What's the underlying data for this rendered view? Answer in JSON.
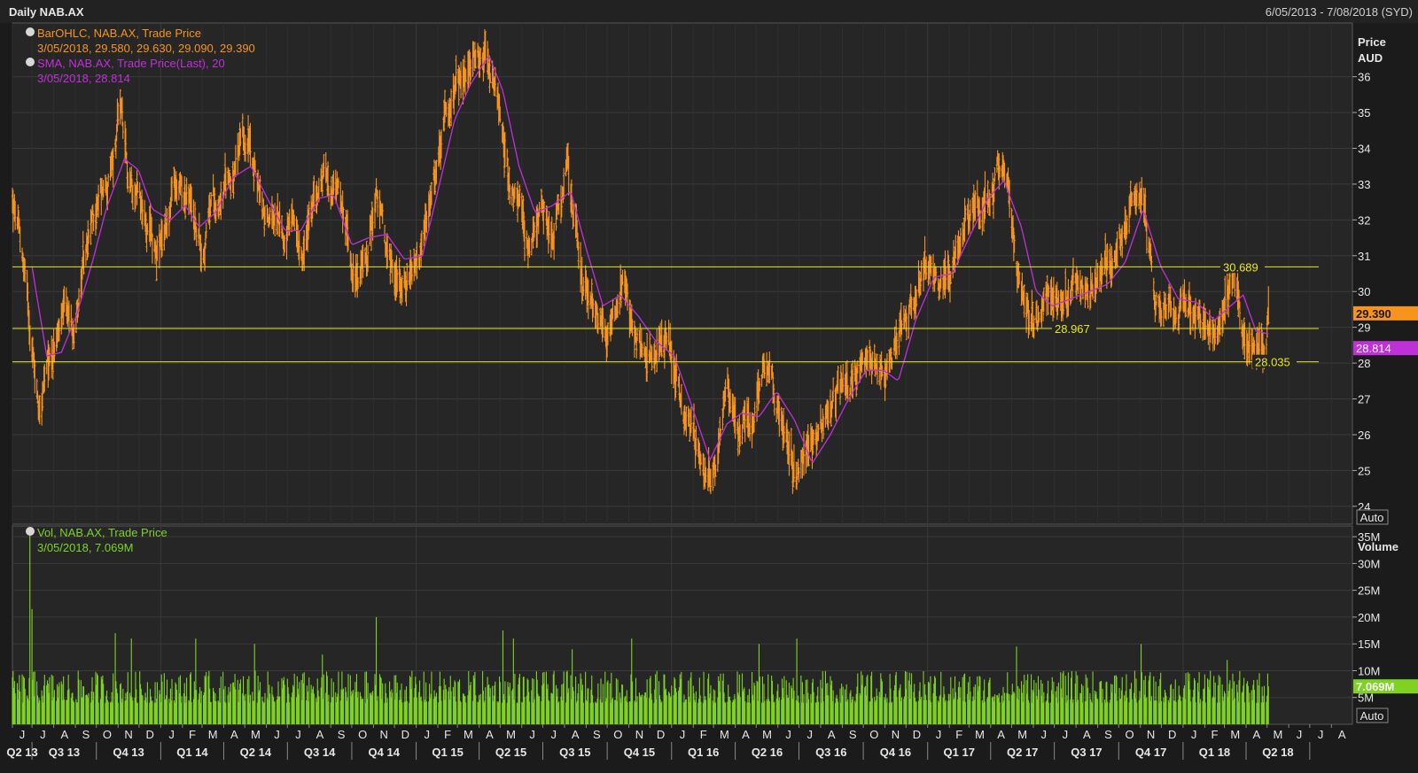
{
  "window": {
    "title": "Daily NAB.AX",
    "date_range": "6/05/2013 - 7/08/2018 (SYD)"
  },
  "price_panel": {
    "axis_title": "Price",
    "axis_unit": "AUD",
    "auto_label": "Auto",
    "legend": [
      {
        "name": "BarOHLC, NAB.AX, Trade Price",
        "detail": "3/05/2018, 29.580, 29.630, 29.090, 29.390",
        "color": "#f7941d"
      },
      {
        "name": "SMA, NAB.AX, Trade Price(Last),  20",
        "detail": "3/05/2018, 28.814",
        "color": "#c030d8"
      }
    ],
    "last_price_label": "29.390",
    "sma_label": "28.814"
  },
  "volume_panel": {
    "axis_title": "Volume",
    "auto_label": "Auto",
    "legend": {
      "name": "Vol, NAB.AX, Trade Price",
      "detail": "3/05/2018, 7.069M",
      "color": "#7ed321"
    },
    "last_volume_label": "7.069M"
  },
  "chart_data": [
    {
      "type": "ohlc",
      "title": "Daily NAB.AX",
      "ylabel": "Price AUD",
      "ylim": [
        23.5,
        37.5
      ],
      "y_ticks": [
        24,
        25,
        26,
        27,
        28,
        29,
        30,
        31,
        32,
        33,
        34,
        35,
        36
      ],
      "x_start": "2013-06-03",
      "x_end": "2018-08-31",
      "month_labels": [
        "J",
        "J",
        "A",
        "S",
        "O",
        "N",
        "D",
        "J",
        "F",
        "M",
        "A",
        "M",
        "J",
        "J",
        "A",
        "S",
        "O",
        "N",
        "D",
        "J",
        "F",
        "M",
        "A",
        "M",
        "J",
        "J",
        "A",
        "S",
        "O",
        "N",
        "D",
        "J",
        "F",
        "M",
        "A",
        "M",
        "J",
        "J",
        "A",
        "S",
        "O",
        "N",
        "D",
        "J",
        "F",
        "M",
        "A",
        "M",
        "J",
        "J",
        "A",
        "S",
        "O",
        "N",
        "D",
        "J",
        "F",
        "M",
        "A",
        "M",
        "J",
        "J",
        "A"
      ],
      "quarter_labels": [
        "Q2 13",
        "Q3 13",
        "Q4 13",
        "Q1 14",
        "Q2 14",
        "Q3 14",
        "Q4 14",
        "Q1 15",
        "Q2 15",
        "Q3 15",
        "Q4 15",
        "Q1 16",
        "Q2 16",
        "Q3 16",
        "Q4 16",
        "Q1 17",
        "Q2 17",
        "Q3 17",
        "Q4 17",
        "Q1 18",
        "Q2 18"
      ],
      "series": [
        {
          "name": "BarOHLC, NAB.AX, Trade Price",
          "color": "#f7941d",
          "path_points": [
            [
              "2013-06-03",
              32.5
            ],
            [
              "2013-06-20",
              30.5
            ],
            [
              "2013-07-10",
              27.0
            ],
            [
              "2013-07-25",
              27.8
            ],
            [
              "2013-08-10",
              29.0
            ],
            [
              "2013-08-28",
              29.0
            ],
            [
              "2013-09-15",
              31.0
            ],
            [
              "2013-10-05",
              32.5
            ],
            [
              "2013-10-25",
              33.5
            ],
            [
              "2013-11-03",
              35.0
            ],
            [
              "2013-11-15",
              33.0
            ],
            [
              "2013-12-01",
              32.8
            ],
            [
              "2013-12-18",
              31.5
            ],
            [
              "2014-01-02",
              31.0
            ],
            [
              "2014-01-20",
              32.8
            ],
            [
              "2014-02-10",
              32.5
            ],
            [
              "2014-03-01",
              31.2
            ],
            [
              "2014-03-15",
              32.5
            ],
            [
              "2014-04-05",
              33.0
            ],
            [
              "2014-04-25",
              33.8
            ],
            [
              "2014-05-10",
              34.0
            ],
            [
              "2014-05-25",
              32.5
            ],
            [
              "2014-06-15",
              31.6
            ],
            [
              "2014-07-05",
              31.5
            ],
            [
              "2014-07-25",
              31.5
            ],
            [
              "2014-08-10",
              32.5
            ],
            [
              "2014-08-28",
              33.3
            ],
            [
              "2014-09-15",
              32.5
            ],
            [
              "2014-10-05",
              30.5
            ],
            [
              "2014-10-20",
              30.8
            ],
            [
              "2014-11-05",
              32.8
            ],
            [
              "2014-11-20",
              30.8
            ],
            [
              "2014-12-10",
              30.5
            ],
            [
              "2014-12-28",
              30.2
            ],
            [
              "2015-01-10",
              31.0
            ],
            [
              "2015-01-25",
              32.5
            ],
            [
              "2015-02-10",
              34.5
            ],
            [
              "2015-02-28",
              35.5
            ],
            [
              "2015-03-20",
              36.2
            ],
            [
              "2015-04-10",
              37.0
            ],
            [
              "2015-04-25",
              35.5
            ],
            [
              "2015-05-10",
              33.5
            ],
            [
              "2015-05-25",
              32.5
            ],
            [
              "2015-06-10",
              31.5
            ],
            [
              "2015-06-28",
              32.5
            ],
            [
              "2015-07-15",
              32.0
            ],
            [
              "2015-08-05",
              33.3
            ],
            [
              "2015-08-25",
              30.5
            ],
            [
              "2015-09-10",
              29.5
            ],
            [
              "2015-09-28",
              28.8
            ],
            [
              "2015-10-15",
              30.0
            ],
            [
              "2015-10-25",
              30.5
            ],
            [
              "2015-11-05",
              29.0
            ],
            [
              "2015-11-25",
              28.5
            ],
            [
              "2015-12-10",
              28.0
            ],
            [
              "2015-12-28",
              28.8
            ],
            [
              "2016-01-15",
              26.5
            ],
            [
              "2016-02-01",
              26.0
            ],
            [
              "2016-02-20",
              24.5
            ],
            [
              "2016-03-05",
              25.5
            ],
            [
              "2016-03-20",
              27.5
            ],
            [
              "2016-04-05",
              26.2
            ],
            [
              "2016-04-25",
              26.5
            ],
            [
              "2016-05-10",
              27.8
            ],
            [
              "2016-05-25",
              27.0
            ],
            [
              "2016-06-10",
              26.5
            ],
            [
              "2016-06-28",
              25.0
            ],
            [
              "2016-07-15",
              25.5
            ],
            [
              "2016-08-05",
              26.5
            ],
            [
              "2016-08-25",
              27.2
            ],
            [
              "2016-09-10",
              27.5
            ],
            [
              "2016-09-28",
              28.0
            ],
            [
              "2016-10-15",
              27.5
            ],
            [
              "2016-10-28",
              28.0
            ],
            [
              "2016-11-10",
              27.8
            ],
            [
              "2016-11-25",
              29.0
            ],
            [
              "2016-12-10",
              30.0
            ],
            [
              "2016-12-28",
              31.0
            ],
            [
              "2017-01-15",
              30.0
            ],
            [
              "2017-02-01",
              30.5
            ],
            [
              "2017-02-20",
              31.5
            ],
            [
              "2017-03-10",
              32.5
            ],
            [
              "2017-03-28",
              33.0
            ],
            [
              "2017-04-15",
              33.5
            ],
            [
              "2017-04-28",
              32.5
            ],
            [
              "2017-05-10",
              30.0
            ],
            [
              "2017-05-28",
              29.2
            ],
            [
              "2017-06-15",
              29.5
            ],
            [
              "2017-07-05",
              30.0
            ],
            [
              "2017-07-25",
              29.8
            ],
            [
              "2017-08-10",
              30.5
            ],
            [
              "2017-08-28",
              30.2
            ],
            [
              "2017-09-15",
              30.5
            ],
            [
              "2017-10-05",
              31.5
            ],
            [
              "2017-10-20",
              32.5
            ],
            [
              "2017-11-03",
              32.5
            ],
            [
              "2017-11-20",
              30.0
            ],
            [
              "2017-12-10",
              29.5
            ],
            [
              "2017-12-28",
              29.8
            ],
            [
              "2018-01-15",
              29.6
            ],
            [
              "2018-02-05",
              29.2
            ],
            [
              "2018-02-20",
              29.0
            ],
            [
              "2018-03-05",
              30.0
            ],
            [
              "2018-03-15",
              30.3
            ],
            [
              "2018-03-28",
              29.0
            ],
            [
              "2018-04-10",
              28.7
            ],
            [
              "2018-04-28",
              28.2
            ],
            [
              "2018-05-03",
              29.39
            ]
          ]
        },
        {
          "name": "SMA, NAB.AX, Trade Price(Last),  20",
          "color": "#c030d8",
          "path_points": [
            [
              "2013-07-01",
              30.7
            ],
            [
              "2013-07-22",
              28.2
            ],
            [
              "2013-08-12",
              28.3
            ],
            [
              "2013-09-02",
              29.3
            ],
            [
              "2013-09-25",
              30.8
            ],
            [
              "2013-10-15",
              32.3
            ],
            [
              "2013-11-10",
              33.7
            ],
            [
              "2013-11-30",
              33.4
            ],
            [
              "2013-12-20",
              32.3
            ],
            [
              "2014-01-15",
              32.0
            ],
            [
              "2014-02-05",
              32.4
            ],
            [
              "2014-02-25",
              31.8
            ],
            [
              "2014-03-20",
              32.2
            ],
            [
              "2014-04-15",
              33.2
            ],
            [
              "2014-05-10",
              33.5
            ],
            [
              "2014-06-05",
              32.5
            ],
            [
              "2014-06-28",
              31.7
            ],
            [
              "2014-07-20",
              31.7
            ],
            [
              "2014-08-15",
              32.6
            ],
            [
              "2014-09-05",
              32.7
            ],
            [
              "2014-10-01",
              31.3
            ],
            [
              "2014-10-25",
              31.5
            ],
            [
              "2014-11-20",
              31.6
            ],
            [
              "2014-12-15",
              30.9
            ],
            [
              "2015-01-10",
              31.0
            ],
            [
              "2015-02-01",
              32.8
            ],
            [
              "2015-02-25",
              34.8
            ],
            [
              "2015-03-20",
              35.8
            ],
            [
              "2015-04-15",
              36.6
            ],
            [
              "2015-05-05",
              35.6
            ],
            [
              "2015-05-28",
              33.5
            ],
            [
              "2015-06-20",
              32.2
            ],
            [
              "2015-07-15",
              32.4
            ],
            [
              "2015-08-10",
              32.8
            ],
            [
              "2015-09-01",
              31.2
            ],
            [
              "2015-09-25",
              29.6
            ],
            [
              "2015-10-20",
              29.9
            ],
            [
              "2015-11-15",
              29.3
            ],
            [
              "2015-12-10",
              28.6
            ],
            [
              "2016-01-05",
              28.2
            ],
            [
              "2016-01-30",
              26.8
            ],
            [
              "2016-02-25",
              25.3
            ],
            [
              "2016-03-20",
              26.3
            ],
            [
              "2016-04-10",
              26.6
            ],
            [
              "2016-05-05",
              26.5
            ],
            [
              "2016-05-30",
              27.2
            ],
            [
              "2016-06-25",
              26.4
            ],
            [
              "2016-07-20",
              25.2
            ],
            [
              "2016-08-15",
              26.0
            ],
            [
              "2016-09-10",
              27.0
            ],
            [
              "2016-10-05",
              27.8
            ],
            [
              "2016-10-30",
              27.8
            ],
            [
              "2016-11-20",
              27.5
            ],
            [
              "2016-12-15",
              29.2
            ],
            [
              "2017-01-10",
              30.4
            ],
            [
              "2017-02-05",
              30.5
            ],
            [
              "2017-03-01",
              31.5
            ],
            [
              "2017-03-28",
              32.6
            ],
            [
              "2017-04-20",
              33.1
            ],
            [
              "2017-05-15",
              31.8
            ],
            [
              "2017-06-05",
              30.0
            ],
            [
              "2017-06-28",
              29.6
            ],
            [
              "2017-07-25",
              29.8
            ],
            [
              "2017-08-20",
              30.0
            ],
            [
              "2017-09-15",
              30.2
            ],
            [
              "2017-10-10",
              30.8
            ],
            [
              "2017-11-05",
              32.3
            ],
            [
              "2017-11-30",
              30.7
            ],
            [
              "2017-12-25",
              29.8
            ],
            [
              "2018-01-20",
              29.7
            ],
            [
              "2018-02-15",
              29.2
            ],
            [
              "2018-03-10",
              29.6
            ],
            [
              "2018-03-28",
              29.9
            ],
            [
              "2018-04-15",
              28.9
            ],
            [
              "2018-05-03",
              28.814
            ]
          ]
        }
      ],
      "horizontal_lines": [
        {
          "value": 30.689,
          "label": "30.689",
          "color": "#e8e81c"
        },
        {
          "value": 28.967,
          "label": "28.967",
          "color": "#e8e81c"
        },
        {
          "value": 28.035,
          "label": "28.035",
          "color": "#e8e81c"
        }
      ],
      "last_values": {
        "close": 29.39,
        "sma": 28.814
      }
    },
    {
      "type": "bar",
      "title": "Vol, NAB.AX, Trade Price",
      "ylabel": "Volume",
      "ylim": [
        0,
        37000000
      ],
      "y_ticks": [
        5000000,
        10000000,
        15000000,
        20000000,
        25000000,
        30000000,
        35000000
      ],
      "y_tick_labels": [
        "5M",
        "10M",
        "15M",
        "20M",
        "25M",
        "30M",
        "35M"
      ],
      "series": [
        {
          "name": "Vol, NAB.AX, Trade Price",
          "color": "#7ed321",
          "typical_range": [
            4000000,
            10000000
          ],
          "spikes": [
            [
              "2013-06-28",
              36000000
            ],
            [
              "2013-07-01",
              21500000
            ],
            [
              "2013-10-28",
              17000000
            ],
            [
              "2013-11-20",
              16000000
            ],
            [
              "2014-02-20",
              16000000
            ],
            [
              "2014-05-15",
              15000000
            ],
            [
              "2014-08-20",
              13000000
            ],
            [
              "2014-11-05",
              20000000
            ],
            [
              "2015-05-05",
              17500000
            ],
            [
              "2015-05-20",
              16000000
            ],
            [
              "2015-08-12",
              14000000
            ],
            [
              "2015-11-05",
              16000000
            ],
            [
              "2016-05-05",
              15000000
            ],
            [
              "2016-06-28",
              16000000
            ],
            [
              "2016-11-05",
              12000000
            ],
            [
              "2017-05-08",
              14500000
            ],
            [
              "2017-11-02",
              15000000
            ],
            [
              "2018-03-05",
              12000000
            ]
          ],
          "last_value": 7069000
        }
      ]
    }
  ]
}
